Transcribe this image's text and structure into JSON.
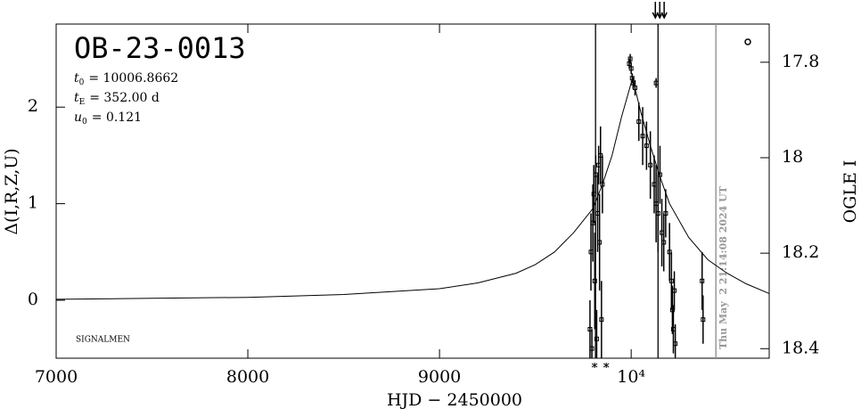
{
  "chart_data": {
    "type": "lightcurve",
    "title": "OB-23-0013",
    "params": [
      {
        "symbol": "t",
        "sub": "0",
        "text": "= 10006.8662"
      },
      {
        "symbol": "t",
        "sub": "E",
        "text": "= 352.00 d"
      },
      {
        "symbol": "u",
        "sub": "0",
        "text": "= 0.121"
      }
    ],
    "credit": "SIGNALMEN",
    "xlabel": "HJD − 2450000",
    "ylabel": "Δ(I,R,Z,U)",
    "y2label": "OGLE I",
    "timestamp": "Thu May  2 21:14:08 2024 UT",
    "xlim": [
      7000,
      10720
    ],
    "xticks": [
      7000,
      8000,
      9000,
      {
        "value": 10000,
        "label": "10⁴"
      }
    ],
    "ylim": [
      -0.6,
      2.86
    ],
    "yticks": [
      0,
      1,
      2
    ],
    "y2lim": [
      17.72,
      18.42
    ],
    "y2ticks": [
      17.8,
      18,
      18.2,
      18.4
    ],
    "model": {
      "color": "#000000",
      "x": [
        7000,
        7500,
        8000,
        8500,
        9000,
        9200,
        9400,
        9500,
        9600,
        9700,
        9800,
        9850,
        9900,
        9950,
        10007,
        10050,
        10100,
        10150,
        10200,
        10300,
        10400,
        10500,
        10600,
        10720
      ],
      "values": [
        0.01,
        0.02,
        0.03,
        0.06,
        0.12,
        0.18,
        0.28,
        0.37,
        0.5,
        0.7,
        0.95,
        1.2,
        1.5,
        1.9,
        2.3,
        1.95,
        1.6,
        1.28,
        1.0,
        0.65,
        0.42,
        0.28,
        0.17,
        0.07
      ]
    },
    "series": [
      {
        "name": "OGLE",
        "color": "#000000",
        "x": [
          9785,
          9790,
          9795,
          9800,
          9805,
          9810,
          9815,
          9820,
          9825,
          9830,
          9835,
          9840,
          9845,
          9850,
          9990,
          9995,
          10000,
          10005,
          10010,
          10020,
          10040,
          10060,
          10080,
          10100,
          10120,
          10130,
          10130,
          10140,
          10150,
          10160,
          10170,
          10180,
          10200,
          10210,
          10215,
          10220,
          10225,
          10230,
          10370,
          10375
        ],
        "values": [
          -0.3,
          0.5,
          -0.5,
          0.8,
          1.1,
          0.2,
          1.3,
          -0.4,
          0.9,
          1.4,
          0.6,
          1.5,
          -0.2,
          1.2,
          2.45,
          2.5,
          2.4,
          2.3,
          2.25,
          2.2,
          1.85,
          1.7,
          1.6,
          1.4,
          1.2,
          1.0,
          2.25,
          0.9,
          1.3,
          0.7,
          0.6,
          0.9,
          0.5,
          0.2,
          -0.1,
          -0.3,
          0.1,
          -0.45,
          0.2,
          -0.2
        ],
        "errors": [
          0.3,
          0.4,
          0.2,
          0.4,
          0.3,
          0.5,
          0.2,
          0.3,
          0.4,
          0.2,
          0.5,
          0.3,
          0.4,
          0.3,
          0.05,
          0.05,
          0.06,
          0.05,
          0.06,
          0.08,
          0.2,
          0.3,
          0.25,
          0.35,
          0.3,
          0.4,
          0.05,
          0.4,
          0.3,
          0.35,
          0.3,
          0.25,
          0.3,
          0.3,
          0.25,
          0.25,
          0.2,
          0.2,
          0.3,
          0.25
        ]
      }
    ],
    "vlines": [
      9814,
      10140
    ],
    "now_line": {
      "x": 10442,
      "color": "#999999"
    },
    "arrows": [
      10126,
      10149,
      10172
    ],
    "stars": [
      9809,
      9870
    ]
  }
}
